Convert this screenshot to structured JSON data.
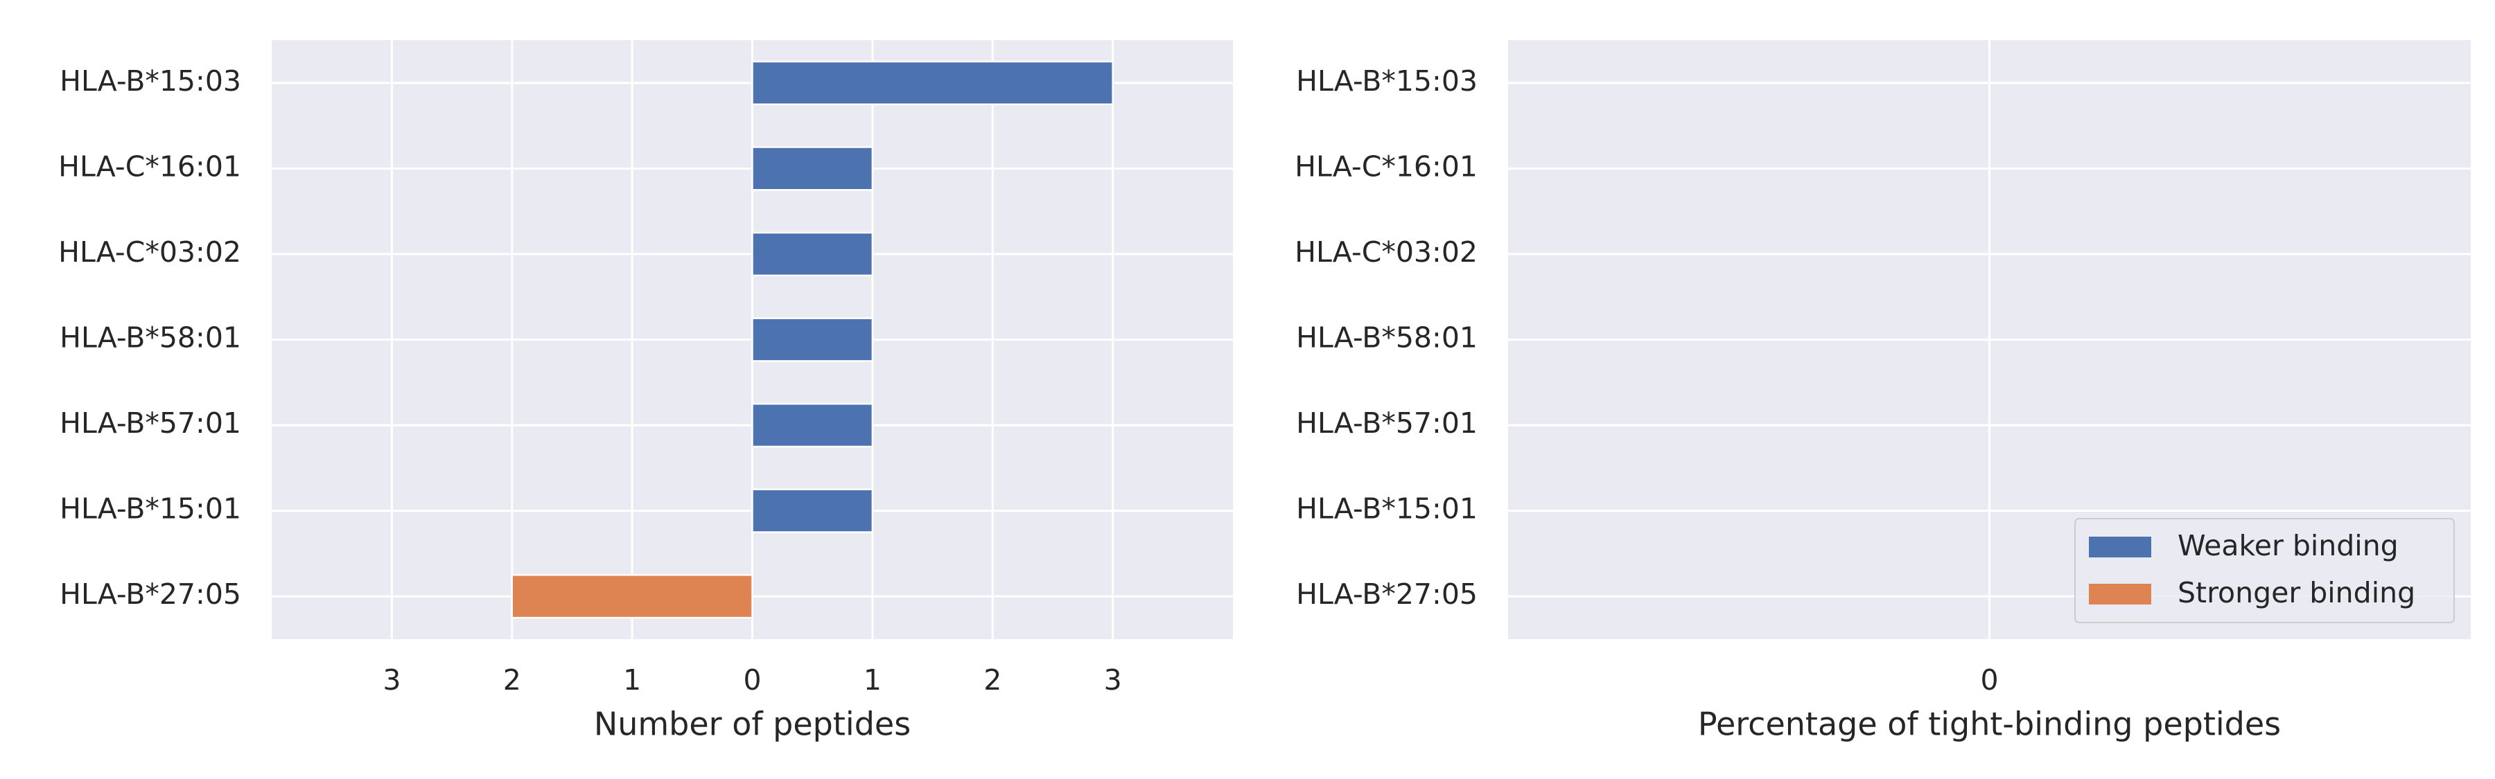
{
  "chart_data": [
    {
      "type": "barh",
      "xlabel": "Number of peptides",
      "categories": [
        "HLA-B*15:03",
        "HLA-C*16:01",
        "HLA-C*03:02",
        "HLA-B*58:01",
        "HLA-B*57:01",
        "HLA-B*15:01",
        "HLA-B*27:05"
      ],
      "series": [
        {
          "name": "Weaker binding",
          "color": "#4c72b0",
          "values": [
            3,
            1,
            1,
            1,
            1,
            1,
            0
          ]
        },
        {
          "name": "Stronger binding",
          "color": "#dd8452",
          "values": [
            0,
            0,
            0,
            0,
            0,
            0,
            -2
          ]
        }
      ],
      "xlim": [
        -4,
        4
      ],
      "xticks": [
        {
          "value": -3,
          "label": "3"
        },
        {
          "value": -2,
          "label": "2"
        },
        {
          "value": -1,
          "label": "1"
        },
        0,
        1,
        2,
        3
      ],
      "grid": true
    },
    {
      "type": "barh",
      "xlabel": "Percentage of tight-binding peptides",
      "categories": [
        "HLA-B*15:03",
        "HLA-C*16:01",
        "HLA-C*03:02",
        "HLA-B*58:01",
        "HLA-B*57:01",
        "HLA-B*15:01",
        "HLA-B*27:05"
      ],
      "series": [
        {
          "name": "Weaker binding",
          "color": "#4c72b0",
          "values": [
            0,
            0,
            0,
            0,
            0,
            0,
            0
          ]
        },
        {
          "name": "Stronger binding",
          "color": "#dd8452",
          "values": [
            0,
            0,
            0,
            0,
            0,
            0,
            0
          ]
        }
      ],
      "xlim": [
        -1,
        1
      ],
      "xticks": [
        0
      ],
      "grid": true,
      "legend": "lower right"
    }
  ]
}
